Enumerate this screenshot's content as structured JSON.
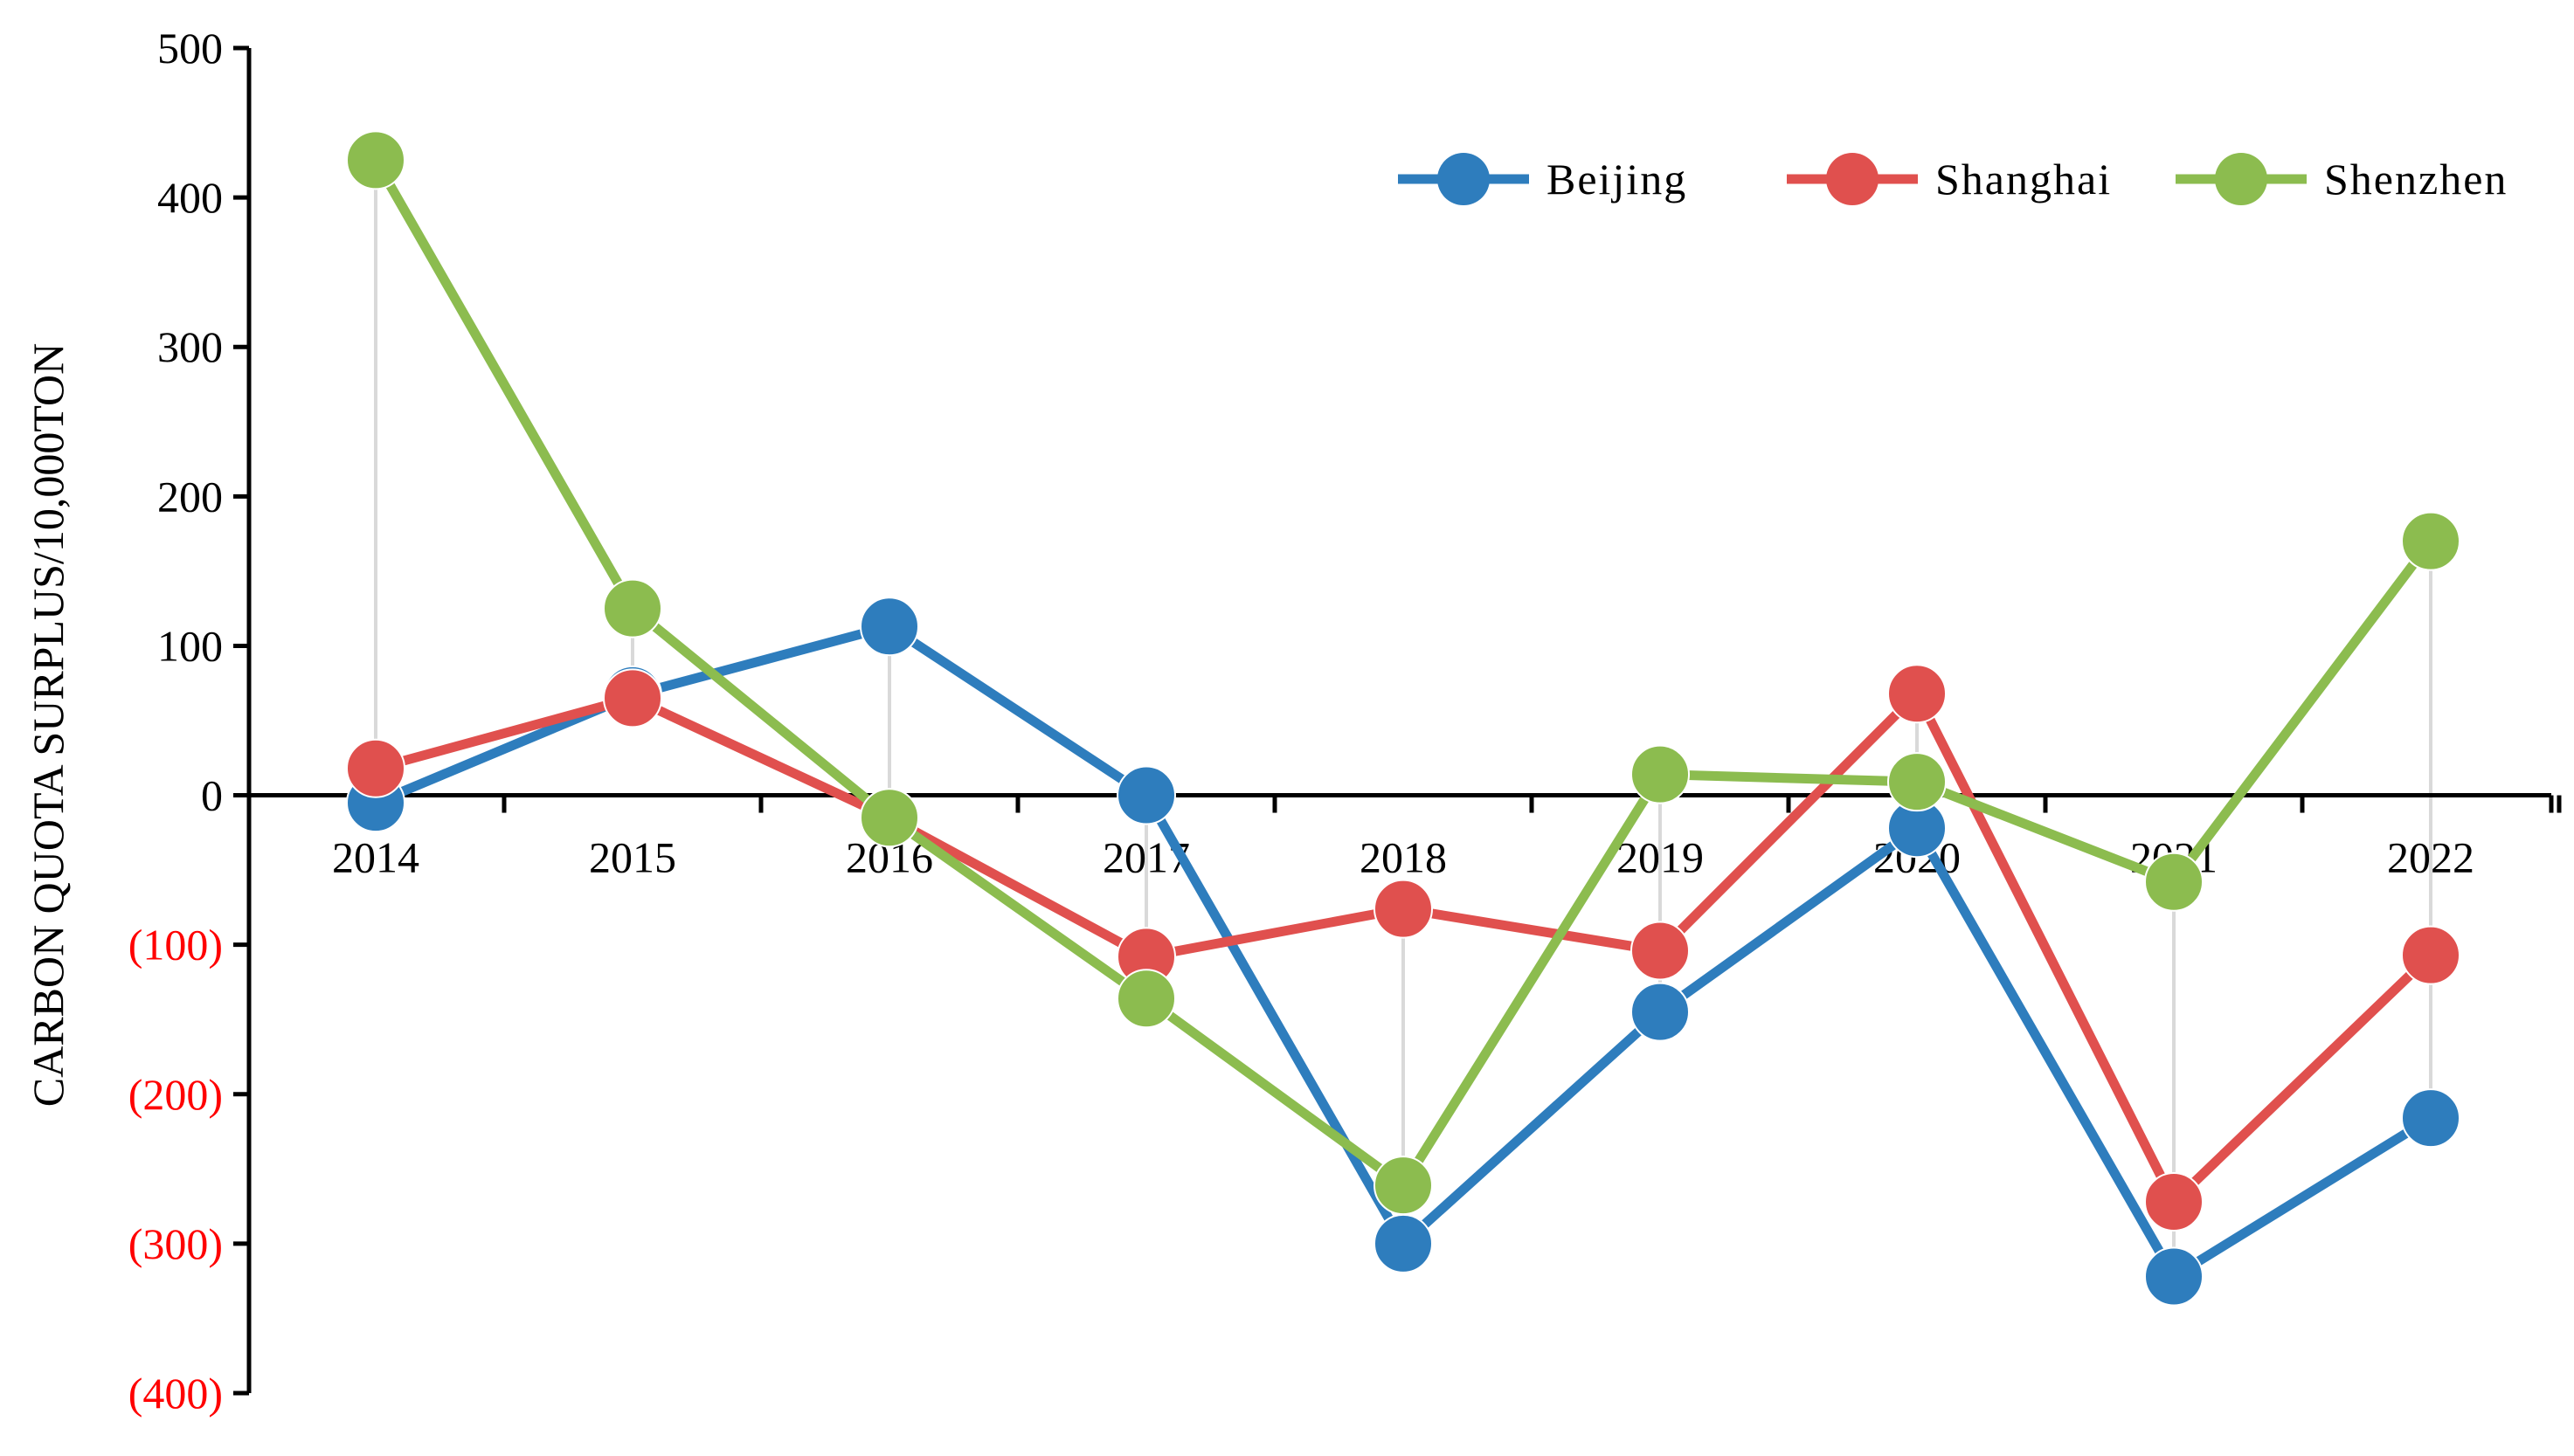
{
  "chart_data": {
    "type": "line",
    "title": "",
    "ylabel": "CARBON QUOTA SURPLUS/10,000TON",
    "xlabel": "",
    "categories": [
      "2014",
      "2015",
      "2016",
      "2017",
      "2018",
      "2019",
      "2020",
      "2021",
      "2022"
    ],
    "ylim": [
      -400,
      500
    ],
    "yticks": [
      500,
      400,
      300,
      200,
      100,
      0,
      -100,
      -200,
      -300,
      -400
    ],
    "ytick_labels": [
      "500",
      "400",
      "300",
      "200",
      "100",
      "0",
      "(100)",
      "(200)",
      "(300)",
      "(400)"
    ],
    "negative_label_color": "#ff0000",
    "positive_label_color": "#000000",
    "vertical_droplines": true,
    "grid": false,
    "legend_position": "top-right",
    "series": [
      {
        "name": "Beijing",
        "color": "#2e7dbd",
        "values": [
          -5,
          67,
          113,
          0,
          -300,
          -145,
          -22,
          -322,
          -216
        ]
      },
      {
        "name": "Shanghai",
        "color": "#e0504e",
        "values": [
          18,
          65,
          -15,
          -108,
          -76,
          -104,
          68,
          -272,
          -107
        ]
      },
      {
        "name": "Shenzhen",
        "color": "#8cbc4f",
        "values": [
          425,
          125,
          -15,
          -136,
          -261,
          14,
          9,
          -58,
          170
        ]
      }
    ]
  }
}
